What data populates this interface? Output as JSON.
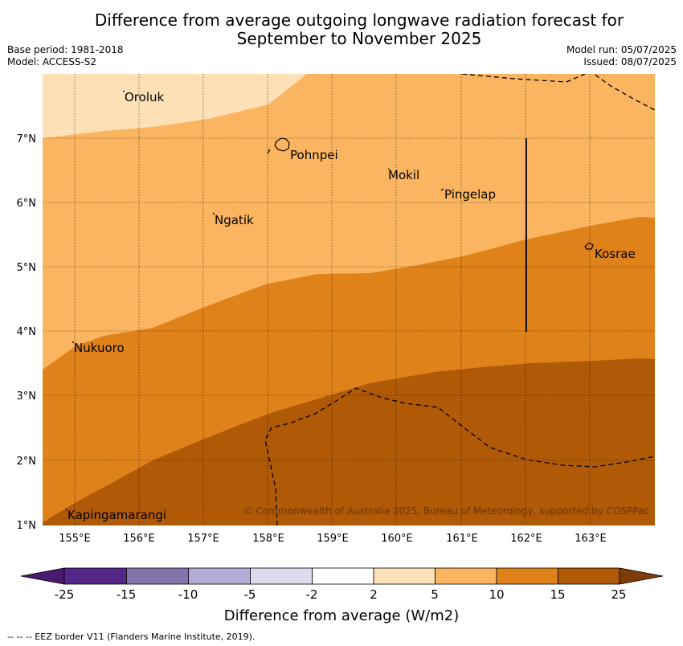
{
  "header": {
    "title_line1": "Difference from average outgoing longwave radiation forecast for",
    "title_line2": "September to November 2025",
    "base_period": "Base period: 1981-2018",
    "model": "Model: ACCESS-S2",
    "model_run": "Model run: 05/07/2025",
    "issued": "Issued: 08/07/2025"
  },
  "map": {
    "lon_labels": [
      "155°E",
      "156°E",
      "157°E",
      "158°E",
      "159°E",
      "160°E",
      "161°E",
      "162°E",
      "163°E"
    ],
    "lat_labels": [
      "1°N",
      "2°N",
      "3°N",
      "4°N",
      "5°N",
      "6°N",
      "7°N"
    ],
    "places": [
      "Oroluk",
      "Pohnpei",
      "Mokil",
      "Pingelap",
      "Ngatik",
      "Kosrae",
      "Nukuoro",
      "Kapingamarangi"
    ],
    "copyright": "© Commonwealth of Australia 2025, Bureau of Meteorology, supported by COSPPac"
  },
  "colorbar": {
    "ticks": [
      "-25",
      "-15",
      "-10",
      "-5",
      "-2",
      "2",
      "5",
      "10",
      "15",
      "25"
    ],
    "colors": [
      "#4a1a6e",
      "#532688",
      "#8374ae",
      "#b3acd4",
      "#dcdcee",
      "#ffffff",
      "#fde0b6",
      "#fbb560",
      "#e0821a",
      "#b05a08",
      "#7f3b08"
    ],
    "label": "Difference from average (W/m2)"
  },
  "footer": {
    "legend": "-- -- -- EEZ border V11 (Flanders Marine Institute, 2019)."
  }
}
